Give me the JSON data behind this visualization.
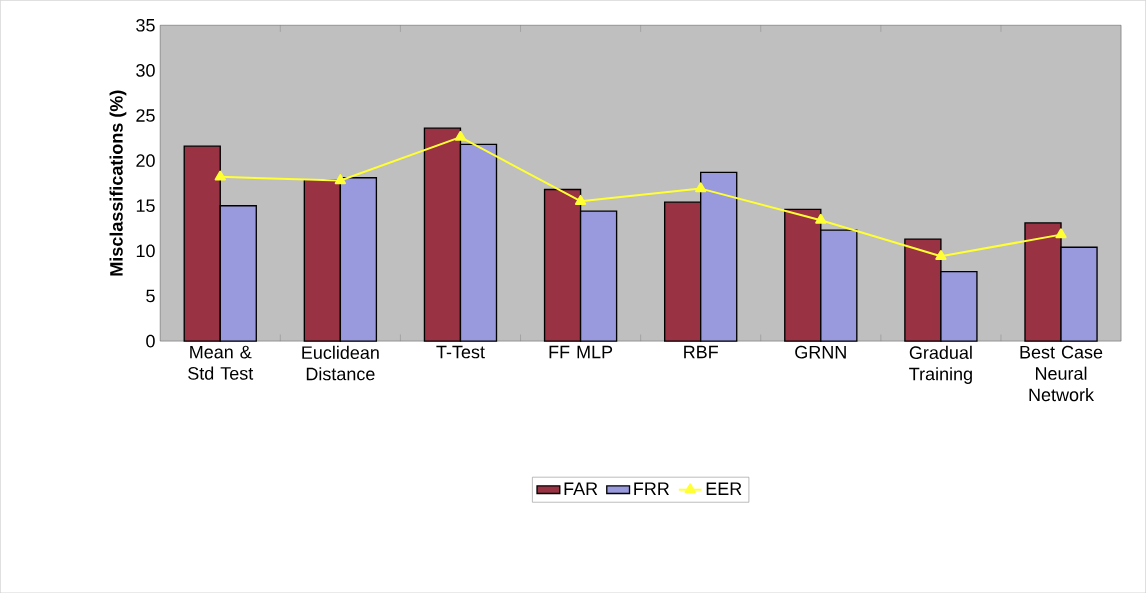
{
  "chart_data": {
    "type": "bar",
    "ylabel": "Misclassifications (%)",
    "categories": [
      "Mean & Std Test",
      "Euclidean Distance",
      "T-Test",
      "FF MLP",
      "RBF",
      "GRNN",
      "Gradual Training",
      "Best Case Neural Network"
    ],
    "series": [
      {
        "name": "FAR",
        "color": "#993344",
        "values": [
          21.6,
          17.9,
          23.6,
          16.8,
          15.4,
          14.6,
          11.3,
          13.1
        ]
      },
      {
        "name": "FRR",
        "color": "#9999dd",
        "values": [
          15.0,
          18.1,
          21.8,
          14.4,
          18.7,
          12.3,
          7.7,
          10.4
        ]
      },
      {
        "name": "EER",
        "type": "line",
        "color": "#ffff33",
        "marker": "triangle",
        "values": [
          18.2,
          17.8,
          22.6,
          15.5,
          16.9,
          13.4,
          9.4,
          11.8
        ]
      }
    ],
    "ylim": [
      0,
      35
    ],
    "yticks": [
      0,
      5,
      10,
      15,
      20,
      25,
      30,
      35
    ],
    "grid": false,
    "legend": "bottom"
  }
}
